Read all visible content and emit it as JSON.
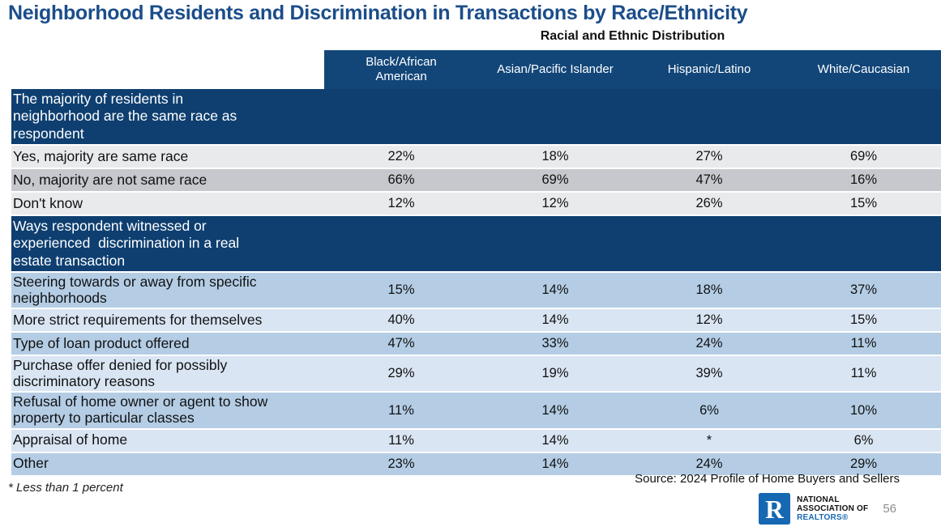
{
  "chart_data": {
    "type": "table",
    "title": "Neighborhood Residents and Discrimination in Transactions by Race/Ethnicity",
    "subtitle": "Racial and Ethnic Distribution",
    "columns": [
      "Black/African American",
      "Asian/Pacific Islander",
      "Hispanic/Latino",
      "White/Caucasian"
    ],
    "sections": [
      {
        "header": "The majority of residents in neighborhood are the same race as respondent",
        "theme": "gray",
        "rows": [
          {
            "label": "Yes, majority are same race",
            "values": [
              "22%",
              "18%",
              "27%",
              "69%"
            ]
          },
          {
            "label": "No, majority are not same race",
            "values": [
              "66%",
              "69%",
              "47%",
              "16%"
            ]
          },
          {
            "label": "Don't know",
            "values": [
              "12%",
              "12%",
              "26%",
              "15%"
            ]
          }
        ]
      },
      {
        "header": "Ways respondent witnessed or experienced  discrimination in a real estate transaction",
        "theme": "blue",
        "rows": [
          {
            "label": "Steering towards or away from specific neighborhoods",
            "values": [
              "15%",
              "14%",
              "18%",
              "37%"
            ]
          },
          {
            "label": "More strict requirements for themselves",
            "values": [
              "40%",
              "14%",
              "12%",
              "15%"
            ]
          },
          {
            "label": "Type of loan product offered",
            "values": [
              "47%",
              "33%",
              "24%",
              "11%"
            ]
          },
          {
            "label": "Purchase offer denied for possibly discriminatory reasons",
            "values": [
              "29%",
              "19%",
              "39%",
              "11%"
            ]
          },
          {
            "label": "Refusal of home owner or agent to show property to particular classes",
            "values": [
              "11%",
              "14%",
              "6%",
              "10%"
            ]
          },
          {
            "label": "Appraisal of home",
            "values": [
              "11%",
              "14%",
              "*",
              "6%"
            ]
          },
          {
            "label": "Other",
            "values": [
              "23%",
              "14%",
              "24%",
              "29%"
            ]
          }
        ]
      }
    ]
  },
  "footer": {
    "footnote": "* Less than 1 percent",
    "source": "Source: 2024 Profile of Home Buyers and Sellers",
    "page_number": "56",
    "logo": {
      "letter": "R",
      "line1": "NATIONAL",
      "line2": "ASSOCIATION OF",
      "line3": "REALTORS®"
    }
  },
  "colors": {
    "title_blue": "#1b4d8a",
    "column_header_navy": "#124679",
    "section_header_navy": "#0e3f70",
    "gray_row_light": "#e9eaec",
    "gray_row_dark": "#c6c8cd",
    "blue_row_medium": "#b4cde5",
    "blue_row_light": "#d9e5f3",
    "logo_blue": "#1668b2",
    "page_number_gray": "#8d8d8d"
  }
}
